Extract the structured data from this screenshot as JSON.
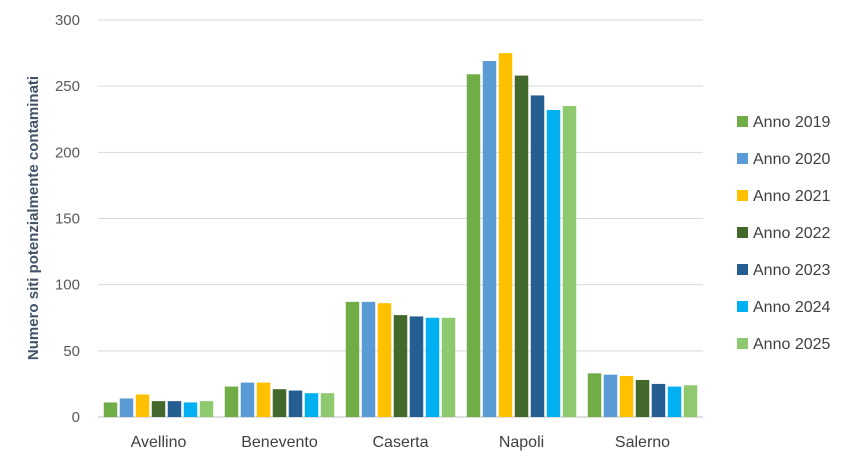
{
  "chart_data": {
    "type": "bar",
    "ylabel": "Numero siti potenzialmente contaminati",
    "xlabel": "",
    "ylim": [
      0,
      300
    ],
    "yticks": [
      0,
      50,
      100,
      150,
      200,
      250,
      300
    ],
    "grid": "horizontal",
    "legend_position": "right",
    "categories": [
      "Avellino",
      "Benevento",
      "Caserta",
      "Napoli",
      "Salerno"
    ],
    "series": [
      {
        "name": "Anno 2019",
        "color": "#70ad47",
        "values": [
          11,
          23,
          87,
          259,
          33
        ]
      },
      {
        "name": "Anno 2020",
        "color": "#5b9bd5",
        "values": [
          14,
          26,
          87,
          269,
          32
        ]
      },
      {
        "name": "Anno 2021",
        "color": "#ffc000",
        "values": [
          17,
          26,
          86,
          275,
          31
        ]
      },
      {
        "name": "Anno 2022",
        "color": "#43682b",
        "values": [
          12,
          21,
          77,
          258,
          28
        ]
      },
      {
        "name": "Anno 2023",
        "color": "#255e91",
        "values": [
          12,
          20,
          76,
          243,
          25
        ]
      },
      {
        "name": "Anno 2024",
        "color": "#00b0f0",
        "values": [
          11,
          18,
          75,
          232,
          23
        ]
      },
      {
        "name": "Anno 2025",
        "color": "#8fc96f",
        "values": [
          12,
          18,
          75,
          235,
          24
        ]
      }
    ]
  }
}
